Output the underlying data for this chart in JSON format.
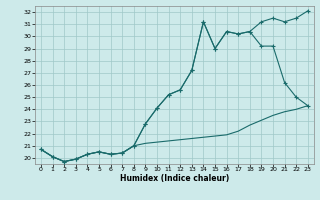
{
  "xlabel": "Humidex (Indice chaleur)",
  "bg_color": "#cdeaea",
  "grid_color": "#a0c8c8",
  "line_color": "#1a6b6b",
  "xlim": [
    -0.5,
    23.5
  ],
  "ylim": [
    19.5,
    32.5
  ],
  "xticks": [
    0,
    1,
    2,
    3,
    4,
    5,
    6,
    7,
    8,
    9,
    10,
    11,
    12,
    13,
    14,
    15,
    16,
    17,
    18,
    19,
    20,
    21,
    22,
    23
  ],
  "yticks": [
    20,
    21,
    22,
    23,
    24,
    25,
    26,
    27,
    28,
    29,
    30,
    31,
    32
  ],
  "line1_x": [
    0,
    1,
    2,
    3,
    4,
    5,
    6,
    7,
    8,
    9,
    10,
    11,
    12,
    13,
    14,
    15,
    16,
    17,
    18,
    19,
    20,
    21,
    22,
    23
  ],
  "line1_y": [
    20.7,
    20.1,
    19.7,
    19.9,
    20.3,
    20.5,
    20.3,
    20.4,
    21.0,
    21.2,
    21.3,
    21.4,
    21.5,
    21.6,
    21.7,
    21.8,
    21.9,
    22.2,
    22.7,
    23.1,
    23.5,
    23.8,
    24.0,
    24.3
  ],
  "line2_x": [
    0,
    1,
    2,
    3,
    4,
    5,
    6,
    7,
    8,
    9,
    10,
    11,
    12,
    13,
    14,
    15,
    16,
    17,
    18,
    19,
    20,
    21,
    22,
    23
  ],
  "line2_y": [
    20.7,
    20.1,
    19.7,
    19.9,
    20.3,
    20.5,
    20.3,
    20.4,
    21.0,
    22.8,
    24.1,
    25.2,
    25.6,
    27.2,
    31.2,
    29.0,
    30.4,
    30.2,
    30.4,
    29.2,
    29.2,
    26.2,
    25.0,
    24.3
  ],
  "line3_x": [
    0,
    1,
    2,
    3,
    4,
    5,
    6,
    7,
    8,
    9,
    10,
    11,
    12,
    13,
    14,
    15,
    16,
    17,
    18,
    19,
    20,
    21,
    22,
    23
  ],
  "line3_y": [
    20.7,
    20.1,
    19.7,
    19.9,
    20.3,
    20.5,
    20.3,
    20.4,
    21.0,
    22.8,
    24.1,
    25.2,
    25.6,
    27.2,
    31.2,
    29.0,
    30.4,
    30.2,
    30.4,
    31.2,
    31.5,
    31.2,
    31.5,
    32.1
  ]
}
